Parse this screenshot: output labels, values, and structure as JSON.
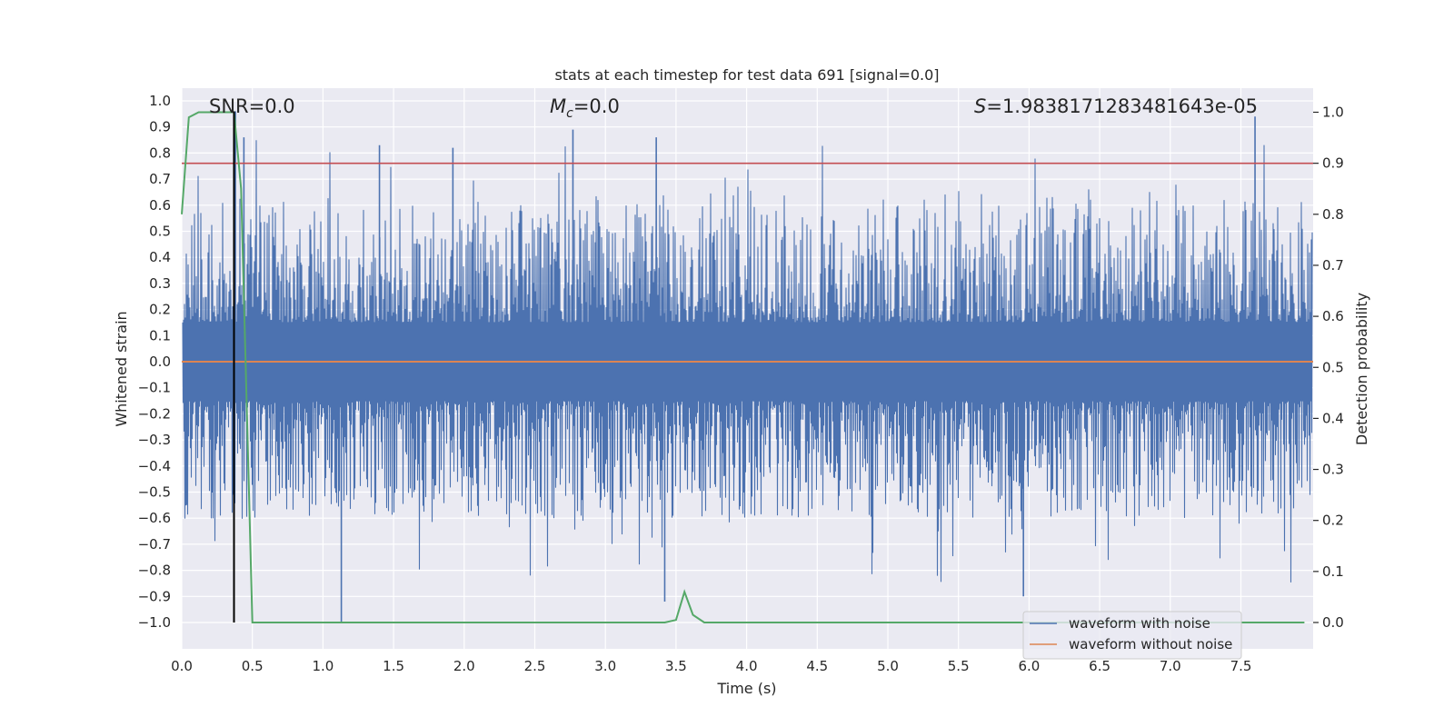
{
  "chart_data": {
    "type": "line",
    "title": "stats at each timestep for test data 691 [signal=0.0]",
    "xlabel": "Time (s)",
    "ylabel": "Whitened strain",
    "y2label": "Detection probability",
    "xlim": [
      0.0,
      7.99
    ],
    "ylim": [
      -1.1,
      1.05
    ],
    "y2lim": [
      -0.05,
      1.05
    ],
    "grid": true,
    "x_ticks": [
      "0.0",
      "0.5",
      "1.0",
      "1.5",
      "2.0",
      "2.5",
      "3.0",
      "3.5",
      "4.0",
      "4.5",
      "5.0",
      "5.5",
      "6.0",
      "6.5",
      "7.0",
      "7.5"
    ],
    "y_ticks": [
      "1.0",
      "0.9",
      "0.8",
      "0.7",
      "0.6",
      "0.5",
      "0.4",
      "0.3",
      "0.2",
      "0.1",
      "0.0",
      "−0.1",
      "−0.2",
      "−0.3",
      "−0.4",
      "−0.5",
      "−0.6",
      "−0.7",
      "−0.8",
      "−0.9",
      "−1.0"
    ],
    "y2_ticks": [
      "1.0",
      "0.9",
      "0.8",
      "0.7",
      "0.6",
      "0.5",
      "0.4",
      "0.3",
      "0.2",
      "0.1",
      "0.0"
    ],
    "annotations": {
      "snr": "SNR=0.0",
      "mc_symbol": "M",
      "mc_sub": "c",
      "mc_value": "=0.0",
      "s_symbol": "S",
      "s_value": "=1.9838171283481643e-05"
    },
    "legend": {
      "position": "lower-right",
      "entries": [
        {
          "label": "waveform with noise",
          "color": "#4c72b0"
        },
        {
          "label": "waveform without noise",
          "color": "#dd8452"
        }
      ]
    },
    "series": [
      {
        "name": "waveform with noise",
        "axis": "left",
        "color": "#4c72b0",
        "description": "dense noise band, roughly -0.6 to 0.6 with spikes to about +0.95 and -1.0",
        "peak_points": [
          {
            "x": 0.38,
            "y": 0.96
          },
          {
            "x": 0.44,
            "y": 0.86
          },
          {
            "x": 1.13,
            "y": -1.0
          },
          {
            "x": 1.4,
            "y": 0.83
          },
          {
            "x": 1.92,
            "y": 0.82
          },
          {
            "x": 2.77,
            "y": 0.89
          },
          {
            "x": 3.36,
            "y": 0.86
          },
          {
            "x": 3.42,
            "y": -0.92
          },
          {
            "x": 5.96,
            "y": -0.9
          },
          {
            "x": 7.6,
            "y": 0.94
          }
        ]
      },
      {
        "name": "waveform without noise",
        "axis": "left",
        "color": "#dd8452",
        "x": [
          0.0,
          7.99
        ],
        "y": [
          0.0,
          0.0
        ]
      },
      {
        "name": "detection probability",
        "axis": "right",
        "color": "#55a868",
        "x": [
          0.0,
          0.05,
          0.12,
          0.2,
          0.3,
          0.37,
          0.42,
          0.5,
          0.55,
          3.0,
          3.42,
          3.5,
          3.56,
          3.62,
          3.7,
          7.95
        ],
        "y": [
          0.8,
          0.99,
          1.0,
          1.0,
          1.0,
          1.0,
          0.85,
          0.0,
          0.0,
          0.0,
          0.0,
          0.005,
          0.06,
          0.015,
          0.0,
          0.0
        ]
      }
    ],
    "hlines": [
      {
        "name": "threshold",
        "axis": "right",
        "y": 0.9,
        "color": "#c44e52"
      }
    ],
    "vlines": [
      {
        "name": "marker",
        "axis": "left",
        "x": 0.37,
        "y_range": [
          -1.0,
          0.96
        ],
        "color": "#000000"
      }
    ]
  }
}
